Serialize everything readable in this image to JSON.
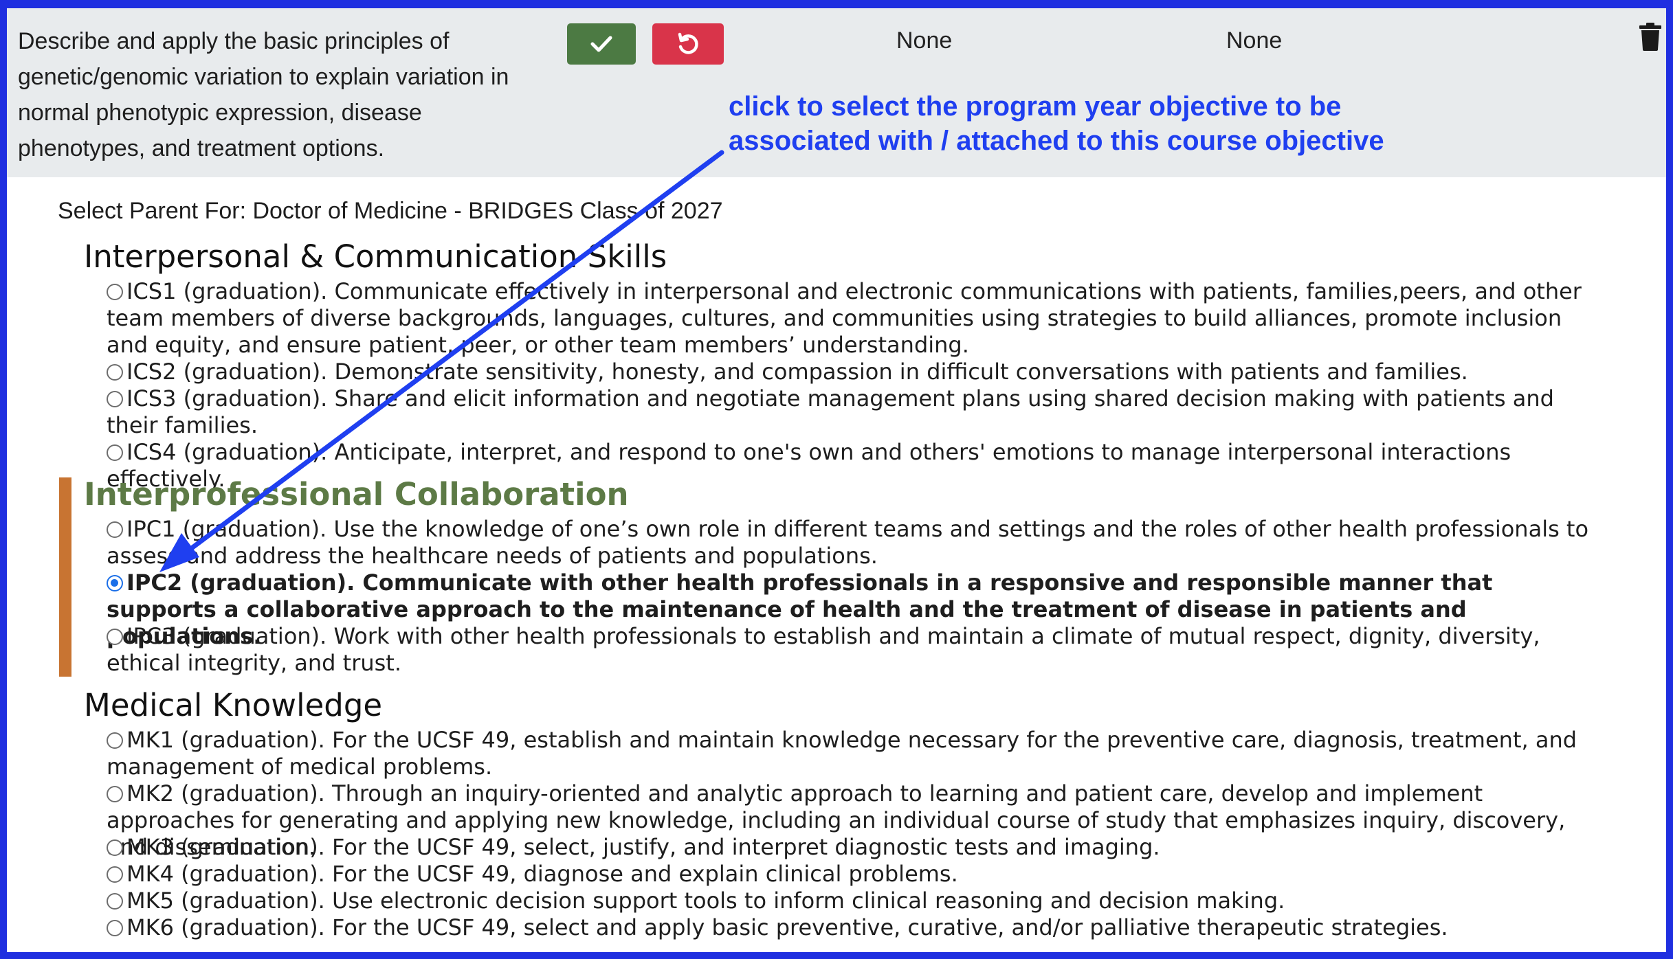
{
  "header": {
    "objective_text": "Describe and apply the basic principles of genetic/genomic variation to explain variation in normal phenotypic expression, disease phenotypes, and treatment options.",
    "save_icon": "check-icon",
    "revert_icon": "undo-icon",
    "delete_icon": "trash-icon",
    "column_1_value": "None",
    "column_2_value": "None"
  },
  "annotation": {
    "text": "click to select the program year objective to be\nassociated with / attached to this course objective",
    "color": "#1f3ff0"
  },
  "select_title": "Select Parent For: Doctor of Medicine - BRIDGES Class of 2027",
  "groups": [
    {
      "title": "Interpersonal & Communication Skills",
      "options": [
        "ICS1 (graduation). Communicate effectively in interpersonal and electronic communications with patients, families,peers, and other team members of diverse backgrounds, languages, cultures, and communities using strategies to build alliances, promote inclusion and equity, and ensure patient, peer, or other team members’ understanding.",
        "ICS2 (graduation). Demonstrate sensitivity, honesty, and compassion in difficult conversations with patients and families.",
        "ICS3 (graduation). Share and elicit information and negotiate management plans using shared decision making with patients and their families.",
        "ICS4 (graduation). Anticipate, interpret, and respond to one's own and others' emotions to manage interpersonal interactions effectively."
      ]
    },
    {
      "title": "Interprofessional Collaboration",
      "options": [
        "IPC1 (graduation). Use the knowledge of one’s own role in different teams and settings and the roles of other health professionals to assess and address the healthcare needs of patients and populations.",
        "IPC2 (graduation). Communicate with other health professionals in a responsive and responsible manner that supports a collaborative approach to the maintenance of health and the treatment of disease in patients and populations.",
        "IPC3 (graduation). Work with other health professionals to establish and maintain a climate of mutual respect, dignity, diversity, ethical integrity, and trust."
      ]
    },
    {
      "title": "Medical Knowledge",
      "options": [
        "MK1 (graduation). For the UCSF 49, establish and maintain knowledge necessary for the preventive care, diagnosis, treatment, and management of medical problems.",
        "MK2 (graduation). Through an inquiry-oriented and analytic approach to learning and patient care, develop and implement approaches for generating and applying new knowledge, including an individual course of study that emphasizes inquiry, discovery, and dissemination.",
        "MK3 (graduation). For the UCSF 49, select, justify, and interpret diagnostic tests and imaging.",
        "MK4 (graduation). For the UCSF 49, diagnose and explain clinical problems.",
        "MK5 (graduation). Use electronic decision support tools to inform clinical reasoning and decision making.",
        "MK6 (graduation). For the UCSF 49, select and apply basic preventive, curative, and/or palliative therapeutic strategies."
      ]
    }
  ],
  "selected": "IPC2 (graduation)",
  "colors": {
    "frame": "#1f2fe0",
    "save_button": "#4c7a43",
    "revert_button": "#d9344a",
    "selected_group_bar": "#c87432",
    "selected_group_title": "#5d7a46",
    "radio_checked": "#1b6fe8"
  }
}
